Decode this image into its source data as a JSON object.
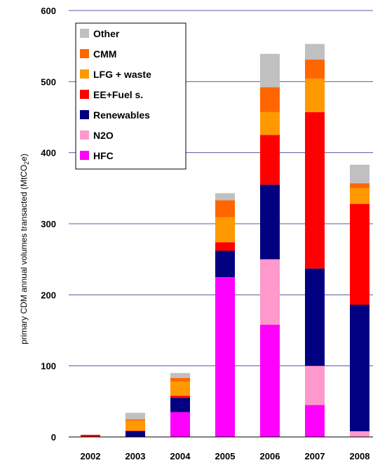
{
  "chart_data": {
    "type": "bar",
    "stacked": true,
    "categories": [
      "2002",
      "2003",
      "2004",
      "2005",
      "2006",
      "2007",
      "2008"
    ],
    "ylabel_prefix": "primary CDM annual volumes transacted (MtCO",
    "ylabel_sub": "2",
    "ylabel_suffix": "e)",
    "ylim": [
      0,
      600
    ],
    "yticks": [
      "0",
      "100",
      "200",
      "300",
      "400",
      "500",
      "600"
    ],
    "grid": true,
    "legend_position": "top-left",
    "series": [
      {
        "name": "HFC",
        "color": "#ff00ff",
        "values": [
          0,
          0,
          35,
          225,
          158,
          45,
          0
        ]
      },
      {
        "name": "N2O",
        "color": "#ff99cc",
        "values": [
          0,
          0,
          0,
          0,
          92,
          55,
          8
        ]
      },
      {
        "name": "Renewables",
        "color": "#000080",
        "values": [
          0,
          8,
          20,
          37,
          105,
          137,
          178
        ]
      },
      {
        "name": "EE+Fuel s.",
        "color": "#ff0000",
        "values": [
          3,
          1,
          3,
          12,
          70,
          220,
          142
        ]
      },
      {
        "name": "LFG + waste",
        "color": "#ff9900",
        "values": [
          0,
          14,
          20,
          35,
          32,
          47,
          22
        ]
      },
      {
        "name": "CMM",
        "color": "#ff6600",
        "values": [
          0,
          2,
          5,
          24,
          35,
          27,
          7
        ]
      },
      {
        "name": "Other",
        "color": "#c0c0c0",
        "values": [
          0,
          9,
          7,
          10,
          47,
          22,
          26
        ]
      }
    ],
    "legend_order": [
      "Other",
      "CMM",
      "LFG + waste",
      "EE+Fuel s.",
      "Renewables",
      "N2O",
      "HFC"
    ]
  }
}
